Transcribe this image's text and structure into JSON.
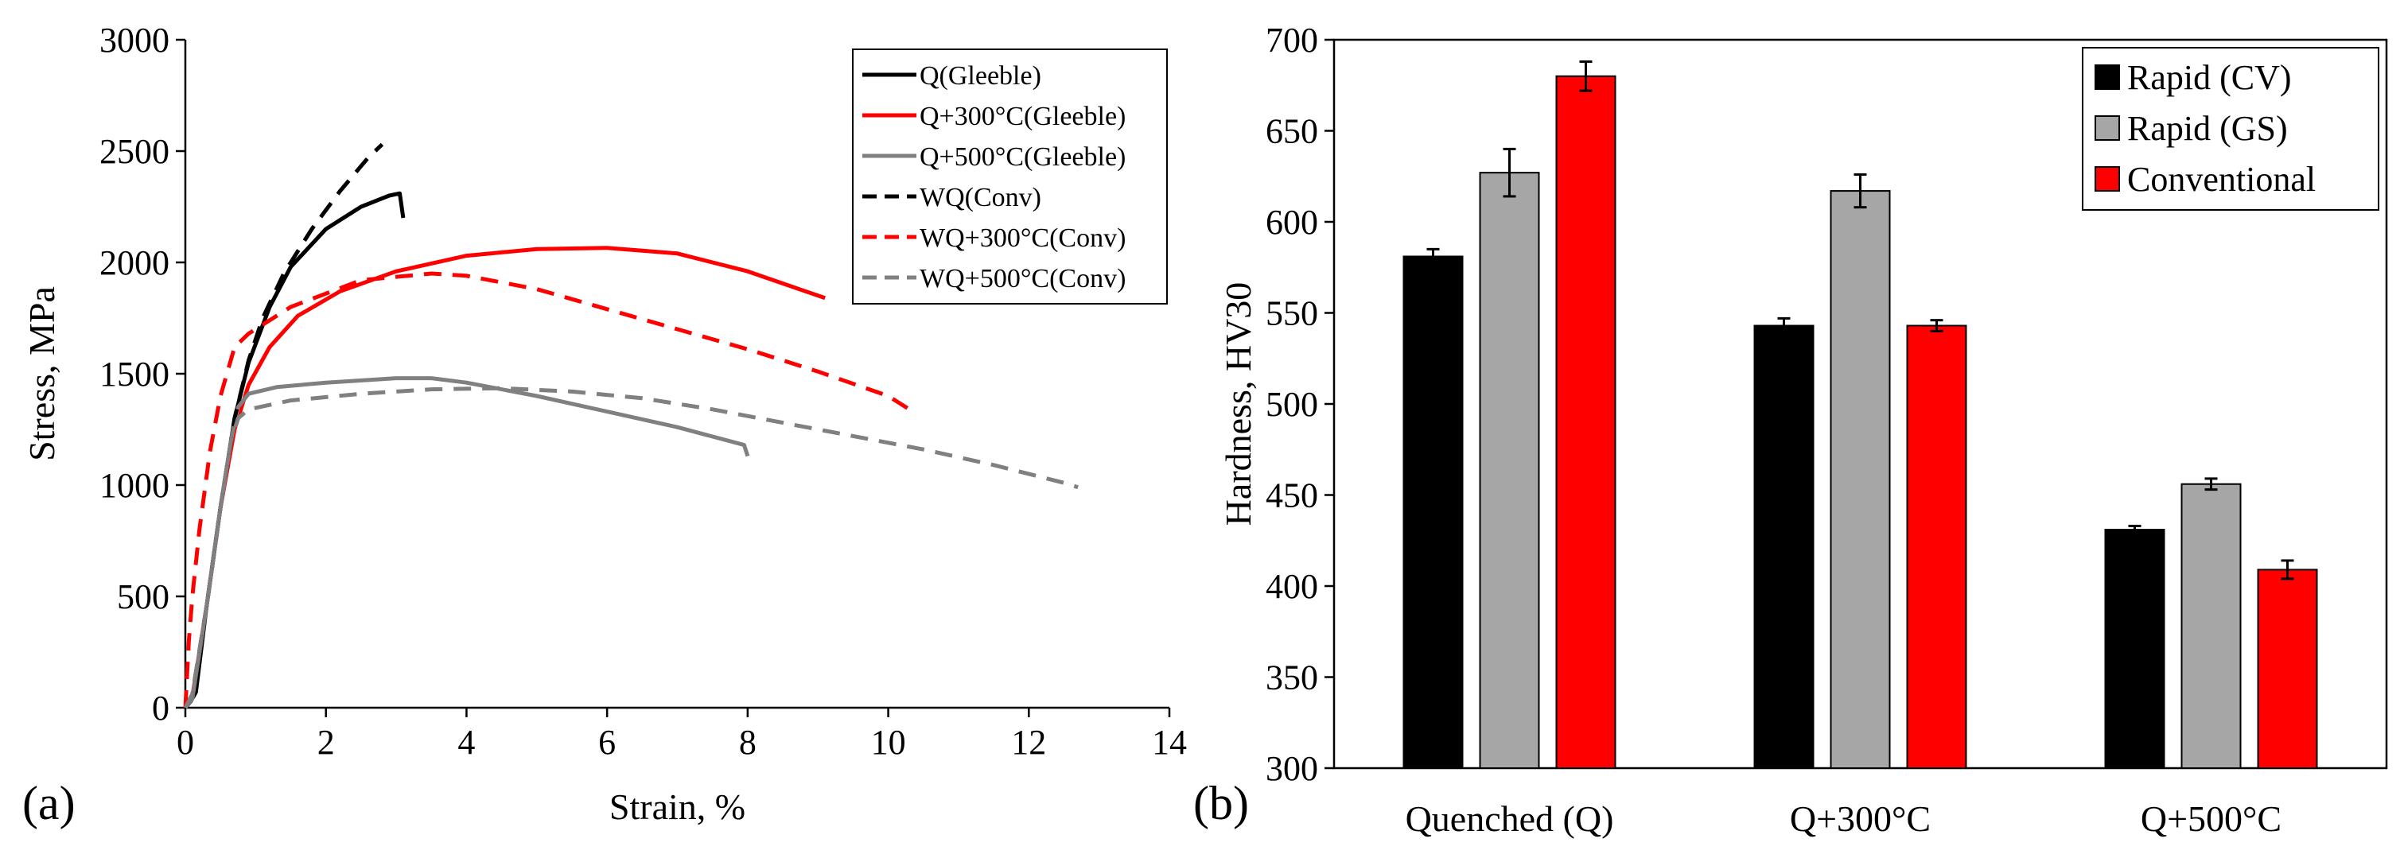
{
  "chart_data": [
    {
      "panel_label": "(a)",
      "type": "line",
      "xlabel": "Strain, %",
      "ylabel": "Stress, MPa",
      "xlim": [
        0,
        14
      ],
      "ylim": [
        0,
        3000
      ],
      "xticks": [
        "0",
        "2",
        "4",
        "6",
        "8",
        "10",
        "12",
        "14"
      ],
      "yticks": [
        "0",
        "500",
        "1000",
        "1500",
        "2000",
        "2500",
        "3000"
      ],
      "legend_position": "top-right",
      "series": [
        {
          "name": "Q(Gleeble)",
          "color": "#000000",
          "dash": "solid",
          "points": [
            [
              0,
              0
            ],
            [
              0.08,
              30
            ],
            [
              0.15,
              70
            ],
            [
              0.3,
              450
            ],
            [
              0.5,
              900
            ],
            [
              0.7,
              1300
            ],
            [
              0.9,
              1550
            ],
            [
              1.2,
              1800
            ],
            [
              1.5,
              1980
            ],
            [
              2.0,
              2150
            ],
            [
              2.5,
              2250
            ],
            [
              2.9,
              2300
            ],
            [
              3.05,
              2310
            ],
            [
              3.1,
              2200
            ]
          ]
        },
        {
          "name": "Q+300°C(Gleeble)",
          "color": "#ff0000",
          "dash": "solid",
          "points": [
            [
              0,
              0
            ],
            [
              0.1,
              50
            ],
            [
              0.3,
              450
            ],
            [
              0.5,
              900
            ],
            [
              0.7,
              1250
            ],
            [
              0.9,
              1450
            ],
            [
              1.2,
              1620
            ],
            [
              1.6,
              1760
            ],
            [
              2.2,
              1870
            ],
            [
              3.0,
              1960
            ],
            [
              4.0,
              2030
            ],
            [
              5.0,
              2060
            ],
            [
              6.0,
              2065
            ],
            [
              7.0,
              2040
            ],
            [
              8.0,
              1960
            ],
            [
              9.1,
              1840
            ]
          ]
        },
        {
          "name": "Q+500°C(Gleeble)",
          "color": "#808080",
          "dash": "solid",
          "points": [
            [
              0,
              0
            ],
            [
              0.1,
              40
            ],
            [
              0.3,
              450
            ],
            [
              0.5,
              900
            ],
            [
              0.65,
              1200
            ],
            [
              0.75,
              1350
            ],
            [
              0.9,
              1410
            ],
            [
              1.3,
              1440
            ],
            [
              2.0,
              1460
            ],
            [
              3.0,
              1480
            ],
            [
              3.5,
              1480
            ],
            [
              4.0,
              1460
            ],
            [
              5.0,
              1400
            ],
            [
              6.0,
              1330
            ],
            [
              7.0,
              1260
            ],
            [
              7.95,
              1180
            ],
            [
              8.0,
              1130
            ]
          ]
        },
        {
          "name": "WQ(Conv)",
          "color": "#000000",
          "dash": "dashed",
          "points": [
            [
              0,
              0
            ],
            [
              0.1,
              60
            ],
            [
              0.3,
              450
            ],
            [
              0.5,
              900
            ],
            [
              0.7,
              1300
            ],
            [
              0.9,
              1560
            ],
            [
              1.1,
              1750
            ],
            [
              1.4,
              1950
            ],
            [
              1.8,
              2150
            ],
            [
              2.2,
              2320
            ],
            [
              2.6,
              2470
            ],
            [
              2.8,
              2530
            ]
          ]
        },
        {
          "name": "WQ+300°C(Conv)",
          "color": "#ff0000",
          "dash": "dashed",
          "points": [
            [
              0,
              0
            ],
            [
              0.05,
              300
            ],
            [
              0.1,
              500
            ],
            [
              0.2,
              800
            ],
            [
              0.35,
              1150
            ],
            [
              0.5,
              1400
            ],
            [
              0.7,
              1620
            ],
            [
              0.9,
              1680
            ],
            [
              1.5,
              1800
            ],
            [
              2.5,
              1920
            ],
            [
              3.5,
              1950
            ],
            [
              4.0,
              1940
            ],
            [
              5.0,
              1880
            ],
            [
              6.0,
              1790
            ],
            [
              7.0,
              1700
            ],
            [
              8.0,
              1610
            ],
            [
              9.0,
              1510
            ],
            [
              10.0,
              1400
            ],
            [
              10.3,
              1340
            ]
          ]
        },
        {
          "name": "WQ+500°C(Conv)",
          "color": "#808080",
          "dash": "dashed",
          "points": [
            [
              0,
              0
            ],
            [
              0.1,
              60
            ],
            [
              0.3,
              450
            ],
            [
              0.5,
              900
            ],
            [
              0.65,
              1200
            ],
            [
              0.75,
              1300
            ],
            [
              0.9,
              1340
            ],
            [
              1.5,
              1380
            ],
            [
              2.5,
              1410
            ],
            [
              3.5,
              1430
            ],
            [
              4.5,
              1435
            ],
            [
              5.5,
              1420
            ],
            [
              6.5,
              1390
            ],
            [
              7.5,
              1340
            ],
            [
              8.5,
              1280
            ],
            [
              9.5,
              1220
            ],
            [
              10.5,
              1160
            ],
            [
              11.5,
              1090
            ],
            [
              12.5,
              1010
            ],
            [
              12.7,
              990
            ]
          ]
        }
      ]
    },
    {
      "panel_label": "(b)",
      "type": "bar",
      "xlabel": "",
      "ylabel": "Hardness, HV30",
      "ylim": [
        300,
        700
      ],
      "yticks": [
        "300",
        "350",
        "400",
        "450",
        "500",
        "550",
        "600",
        "650",
        "700"
      ],
      "categories": [
        "Quenched (Q)",
        "Q+300°C",
        "Q+500°C"
      ],
      "legend_position": "top-right",
      "series": [
        {
          "name": "Rapid (CV)",
          "color": "#000000",
          "values": [
            581,
            543,
            431
          ],
          "errors": [
            4,
            4,
            2
          ]
        },
        {
          "name": "Rapid (GS)",
          "color": "#a6a6a6",
          "values": [
            627,
            617,
            456
          ],
          "errors": [
            13,
            9,
            3
          ]
        },
        {
          "name": "Conventional",
          "color": "#ff0000",
          "values": [
            680,
            543,
            409
          ],
          "errors": [
            8,
            3,
            5
          ]
        }
      ]
    }
  ]
}
